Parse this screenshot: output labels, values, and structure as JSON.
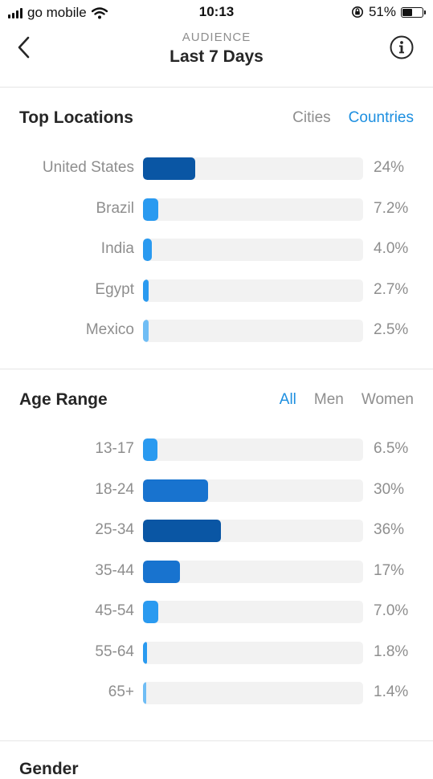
{
  "status": {
    "carrier": "go mobile",
    "time": "10:13",
    "battery": "51%",
    "battery_fill": 0.51
  },
  "header": {
    "kicker": "AUDIENCE",
    "title": "Last 7 Days"
  },
  "top_locations": {
    "title": "Top Locations",
    "tabs": [
      "Cities",
      "Countries"
    ],
    "active_tab": 1,
    "rows": [
      {
        "label": "United States",
        "value": "24%",
        "pct": 24,
        "color": "#0a56a4"
      },
      {
        "label": "Brazil",
        "value": "7.2%",
        "pct": 7.2,
        "color": "#2a9af0"
      },
      {
        "label": "India",
        "value": "4.0%",
        "pct": 4.0,
        "color": "#2a9af0"
      },
      {
        "label": "Egypt",
        "value": "2.7%",
        "pct": 2.7,
        "color": "#2a9af0"
      },
      {
        "label": "Mexico",
        "value": "2.5%",
        "pct": 2.5,
        "color": "#6fbdf5"
      }
    ]
  },
  "age_range": {
    "title": "Age Range",
    "tabs": [
      "All",
      "Men",
      "Women"
    ],
    "active_tab": 0,
    "rows": [
      {
        "label": "13-17",
        "value": "6.5%",
        "pct": 6.5,
        "color": "#2a9af0"
      },
      {
        "label": "18-24",
        "value": "30%",
        "pct": 30,
        "color": "#1873cf"
      },
      {
        "label": "25-34",
        "value": "36%",
        "pct": 36,
        "color": "#0a56a4"
      },
      {
        "label": "35-44",
        "value": "17%",
        "pct": 17,
        "color": "#1873cf"
      },
      {
        "label": "45-54",
        "value": "7.0%",
        "pct": 7.0,
        "color": "#2a9af0"
      },
      {
        "label": "55-64",
        "value": "1.8%",
        "pct": 1.8,
        "color": "#2a9af0"
      },
      {
        "label": "65+",
        "value": "1.4%",
        "pct": 1.4,
        "color": "#6fbdf5"
      }
    ]
  },
  "gender": {
    "title": "Gender"
  },
  "icons": {
    "back": "chevron-left-icon",
    "info": "info-icon",
    "wifi": "wifi-icon",
    "battery": "battery-icon",
    "lock": "orientation-lock-icon",
    "signal": "signal-icon"
  }
}
